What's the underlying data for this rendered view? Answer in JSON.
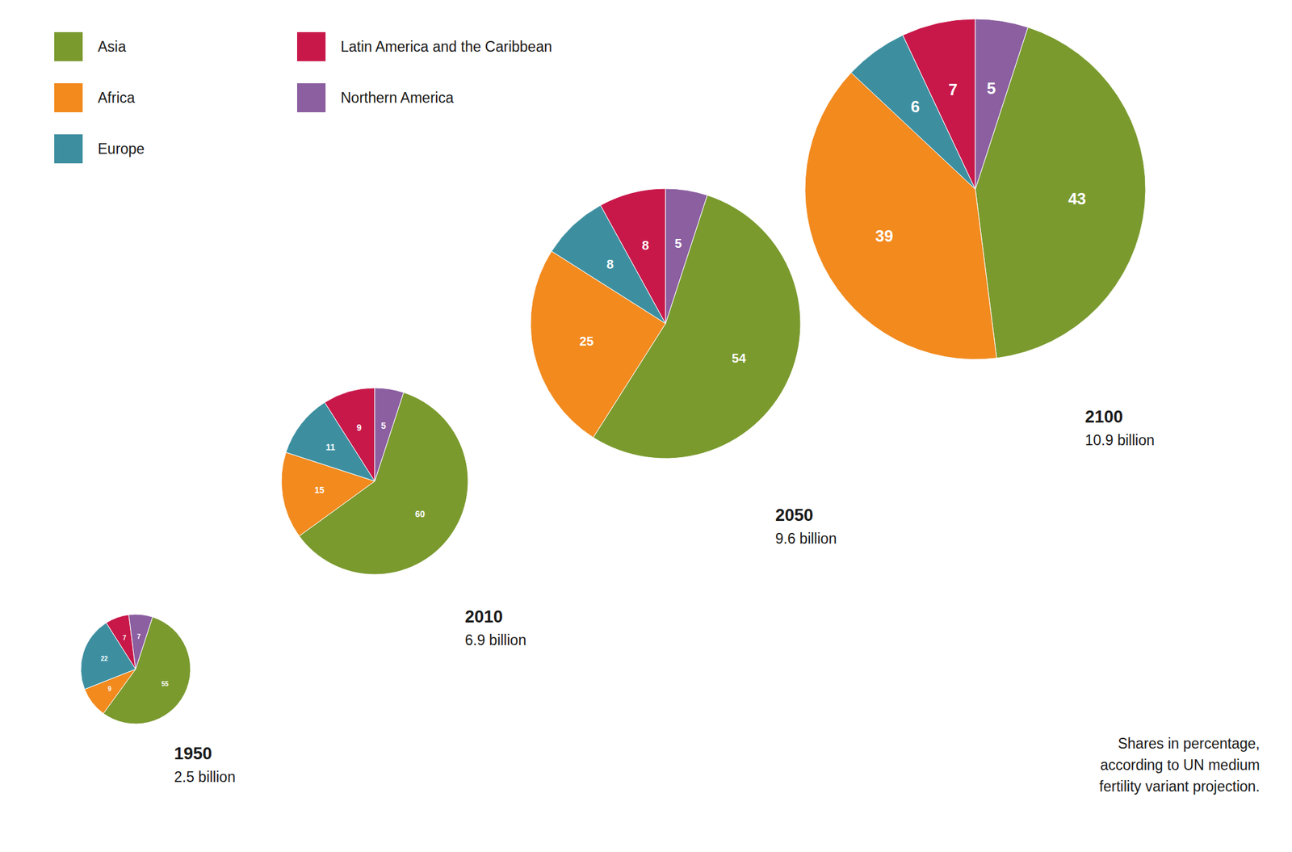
{
  "chart_data": [
    {
      "type": "pie",
      "title": "1950",
      "subtitle": "2.5 billion",
      "categories": [
        "Asia",
        "Africa",
        "Europe",
        "Latin America and the Caribbean",
        "Northern America"
      ],
      "values": [
        55,
        9,
        22,
        7,
        7
      ],
      "colors": [
        "#7a9a2e",
        "#f28a1e",
        "#3d8fa0",
        "#c8184a",
        "#8b5fa0"
      ],
      "data_labels": true,
      "legend": "top-left"
    },
    {
      "type": "pie",
      "title": "2010",
      "subtitle": "6.9 billion",
      "categories": [
        "Asia",
        "Africa",
        "Europe",
        "Latin America and the Caribbean",
        "Northern America"
      ],
      "values": [
        60,
        15,
        11,
        9,
        5
      ],
      "colors": [
        "#7a9a2e",
        "#f28a1e",
        "#3d8fa0",
        "#c8184a",
        "#8b5fa0"
      ],
      "data_labels": true
    },
    {
      "type": "pie",
      "title": "2050",
      "subtitle": "9.6 billion",
      "categories": [
        "Asia",
        "Africa",
        "Europe",
        "Latin America and the Caribbean",
        "Northern America"
      ],
      "values": [
        54,
        25,
        8,
        8,
        5
      ],
      "colors": [
        "#7a9a2e",
        "#f28a1e",
        "#3d8fa0",
        "#c8184a",
        "#8b5fa0"
      ],
      "data_labels": true
    },
    {
      "type": "pie",
      "title": "2100",
      "subtitle": "10.9 billion",
      "categories": [
        "Asia",
        "Africa",
        "Europe",
        "Latin America and the Caribbean",
        "Northern America"
      ],
      "values": [
        43,
        39,
        6,
        7,
        5
      ],
      "colors": [
        "#7a9a2e",
        "#f28a1e",
        "#3d8fa0",
        "#c8184a",
        "#8b5fa0"
      ],
      "data_labels": true,
      "annotation": "Shares in percentage,\naccording to UN medium\nfertility variant projection."
    }
  ]
}
